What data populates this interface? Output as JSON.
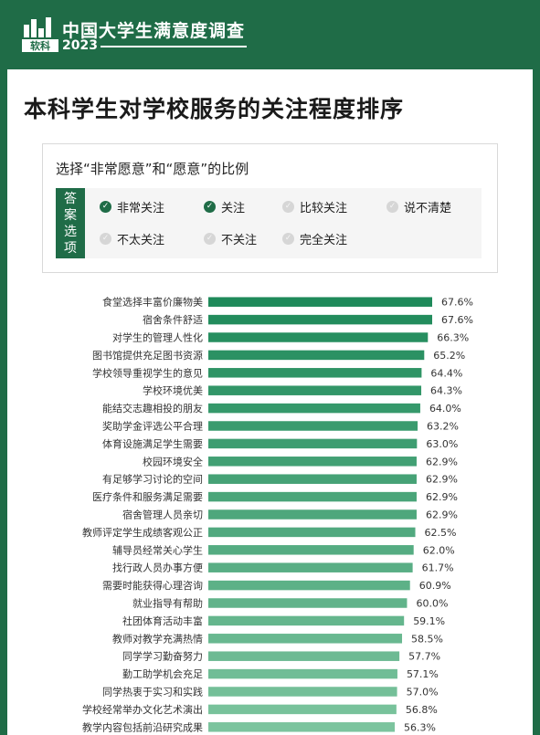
{
  "header": {
    "logo_text": "软科",
    "title": "中国大学生满意度调查",
    "year": "2023"
  },
  "page_title": "本科学生对学校服务的关注程度排序",
  "filter": {
    "label": "选择“非常愿意”和“愿意”的比例",
    "tag_chars": [
      "答",
      "案",
      "选",
      "项"
    ],
    "options": [
      {
        "label": "非常关注",
        "checked": true
      },
      {
        "label": "关注",
        "checked": true
      },
      {
        "label": "比较关注",
        "checked": false
      },
      {
        "label": "说不清楚",
        "checked": false
      },
      {
        "label": "不太关注",
        "checked": false
      },
      {
        "label": "不关注",
        "checked": false
      },
      {
        "label": "完全关注",
        "checked": false
      }
    ]
  },
  "colors": {
    "brand": "#1f6c47",
    "bar_top": "#1f8a5a",
    "bar_bottom": "#7cc49e"
  },
  "chart_data": {
    "type": "bar",
    "orientation": "horizontal",
    "title": "",
    "xlabel": "",
    "ylabel": "",
    "xlim": [
      0,
      67.6
    ],
    "grid": false,
    "categories": [
      "食堂选择丰富价廉物美",
      "宿舍条件舒适",
      "对学生的管理人性化",
      "图书馆提供充足图书资源",
      "学校领导重视学生的意见",
      "学校环境优美",
      "能结交志趣相投的朋友",
      "奖助学金评选公平合理",
      "体育设施满足学生需要",
      "校园环境安全",
      "有足够学习讨论的空间",
      "医疗条件和服务满足需要",
      "宿舍管理人员亲切",
      "教师评定学生成绩客观公正",
      "辅导员经常关心学生",
      "找行政人员办事方便",
      "需要时能获得心理咨询",
      "就业指导有帮助",
      "社团体育活动丰富",
      "教师对教学充满热情",
      "同学学习勤奋努力",
      "勤工助学机会充足",
      "同学热衷于实习和实践",
      "学校经常举办文化艺术演出",
      "教学内容包括前沿研究成果"
    ],
    "values": [
      67.6,
      67.6,
      66.3,
      65.2,
      64.4,
      64.3,
      64.0,
      63.2,
      63.0,
      62.9,
      62.9,
      62.9,
      62.9,
      62.5,
      62.0,
      61.7,
      60.9,
      60.0,
      59.1,
      58.5,
      57.7,
      57.1,
      57.0,
      56.8,
      56.3
    ],
    "value_labels": [
      "67.6%",
      "67.6%",
      "66.3%",
      "65.2%",
      "64.4%",
      "64.3%",
      "64.0%",
      "63.2%",
      "63.0%",
      "62.9%",
      "62.9%",
      "62.9%",
      "62.9%",
      "62.5%",
      "62.0%",
      "61.7%",
      "60.9%",
      "60.0%",
      "59.1%",
      "58.5%",
      "57.7%",
      "57.1%",
      "57.0%",
      "56.8%",
      "56.3%"
    ]
  }
}
